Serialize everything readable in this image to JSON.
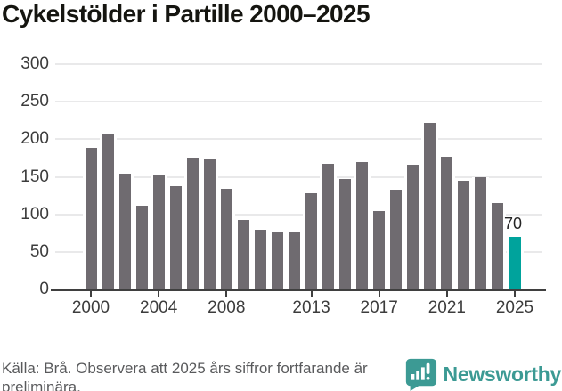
{
  "title": "Cykelstölder i Partille 2000–2025",
  "chart_data": {
    "type": "bar",
    "title": "Cykelstölder i Partille 2000–2025",
    "x": [
      2000,
      2001,
      2002,
      2003,
      2004,
      2005,
      2006,
      2007,
      2008,
      2009,
      2010,
      2011,
      2012,
      2013,
      2014,
      2015,
      2016,
      2017,
      2018,
      2019,
      2020,
      2021,
      2022,
      2023,
      2024,
      2025
    ],
    "values": [
      188,
      207,
      154,
      111,
      152,
      137,
      175,
      174,
      134,
      92,
      79,
      77,
      76,
      128,
      167,
      147,
      169,
      104,
      133,
      166,
      222,
      177,
      145,
      150,
      115,
      70
    ],
    "xlabel": "",
    "ylabel": "",
    "ylim": [
      0,
      300
    ],
    "y_ticks": [
      0,
      50,
      100,
      150,
      200,
      250,
      300
    ],
    "x_tick_years": [
      2000,
      2004,
      2008,
      2013,
      2017,
      2021,
      2025
    ],
    "x_tick_labels": [
      "2000",
      "2004",
      "2008",
      "2013",
      "2017",
      "2021",
      "2025"
    ],
    "grid": true,
    "legend_position": "none",
    "bar_color": "#6f6b70",
    "highlight": {
      "year": 2025,
      "value": 70,
      "label": "70",
      "color": "#00a39c"
    }
  },
  "footer": {
    "source": "Källa: Brå. Observera att 2025 års siffror fortfarande är preliminära.",
    "brand": "Newsworthy",
    "brand_icon": "newsworthy-speech-bubble-bar-chart-icon",
    "brand_color": "#3c9a94"
  }
}
